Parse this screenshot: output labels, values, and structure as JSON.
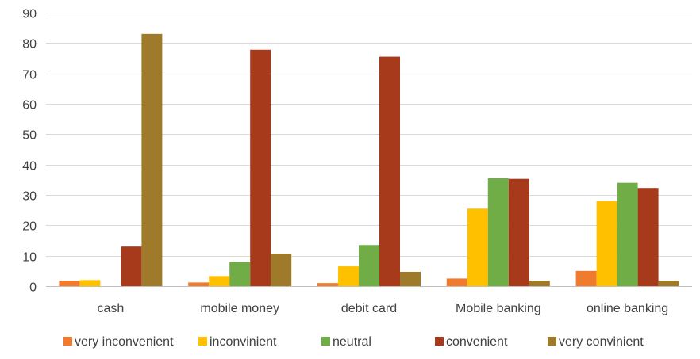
{
  "chart_data": {
    "type": "bar",
    "title": "",
    "xlabel": "",
    "ylabel": "",
    "ylim": [
      0,
      90
    ],
    "yticks": [
      0,
      10,
      20,
      30,
      40,
      50,
      60,
      70,
      80,
      90
    ],
    "grid": true,
    "legend_position": "bottom",
    "categories": [
      "cash",
      "mobile money",
      "debit card",
      "Mobile banking",
      "online banking"
    ],
    "series": [
      {
        "name": "very inconvenient",
        "color": "#F07A2E",
        "values": [
          1.8,
          1.2,
          1.0,
          2.5,
          5.0
        ]
      },
      {
        "name": "inconvinient",
        "color": "#FFC000",
        "values": [
          2.0,
          3.3,
          6.5,
          25.5,
          28.0
        ]
      },
      {
        "name": "neutral",
        "color": "#70AD47",
        "values": [
          0,
          8.0,
          13.5,
          35.5,
          34.0
        ]
      },
      {
        "name": "convenient",
        "color": "#A83A1C",
        "values": [
          13.0,
          77.8,
          75.5,
          35.3,
          32.3
        ]
      },
      {
        "name": "very convinient",
        "color": "#9E7A2A",
        "values": [
          83.0,
          10.7,
          4.7,
          1.8,
          1.8
        ]
      }
    ]
  }
}
